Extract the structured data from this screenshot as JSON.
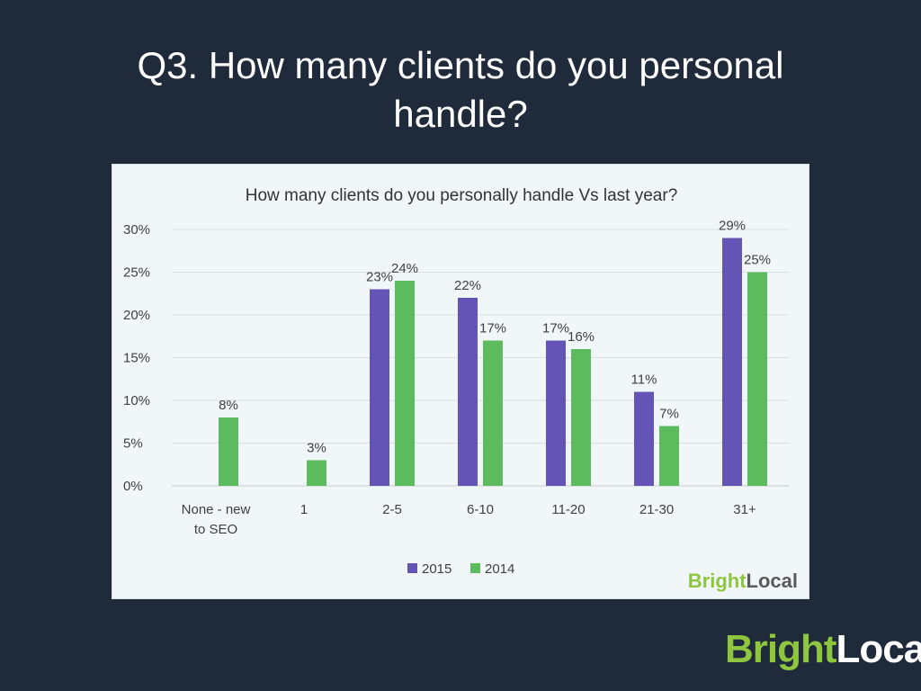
{
  "slide": {
    "title": "Q3. How many clients do you personal handle?"
  },
  "brand": {
    "bright": "Bright",
    "local": "Local",
    "bright_color": "#8ec63f",
    "local_color_dark": "#5a5a5a",
    "local_color_light": "#ffffff"
  },
  "chart_data": {
    "type": "bar",
    "title": "How many clients do you personally handle Vs last year?",
    "categories": [
      [
        "None - new",
        "to SEO"
      ],
      [
        "1"
      ],
      [
        "2-5"
      ],
      [
        "6-10"
      ],
      [
        "11-20"
      ],
      [
        "21-30"
      ],
      [
        "31+"
      ]
    ],
    "series": [
      {
        "name": "2015",
        "color": "#6454b5",
        "values": [
          null,
          null,
          23,
          22,
          17,
          11,
          29
        ],
        "labels": [
          "",
          "",
          "23%",
          "22%",
          "17%",
          "11%",
          "29%"
        ]
      },
      {
        "name": "2014",
        "color": "#5cbb5c",
        "values": [
          8,
          3,
          24,
          17,
          16,
          7,
          25
        ],
        "labels": [
          "8%",
          "3%",
          "24%",
          "17%",
          "16%",
          "7%",
          "25%"
        ]
      }
    ],
    "ylim": [
      0,
      30
    ],
    "yticks": [
      0,
      5,
      10,
      15,
      20,
      25,
      30
    ],
    "ytick_labels": [
      "0%",
      "5%",
      "10%",
      "15%",
      "20%",
      "25%",
      "30%"
    ],
    "grid": true,
    "legend": "bottom-center"
  }
}
